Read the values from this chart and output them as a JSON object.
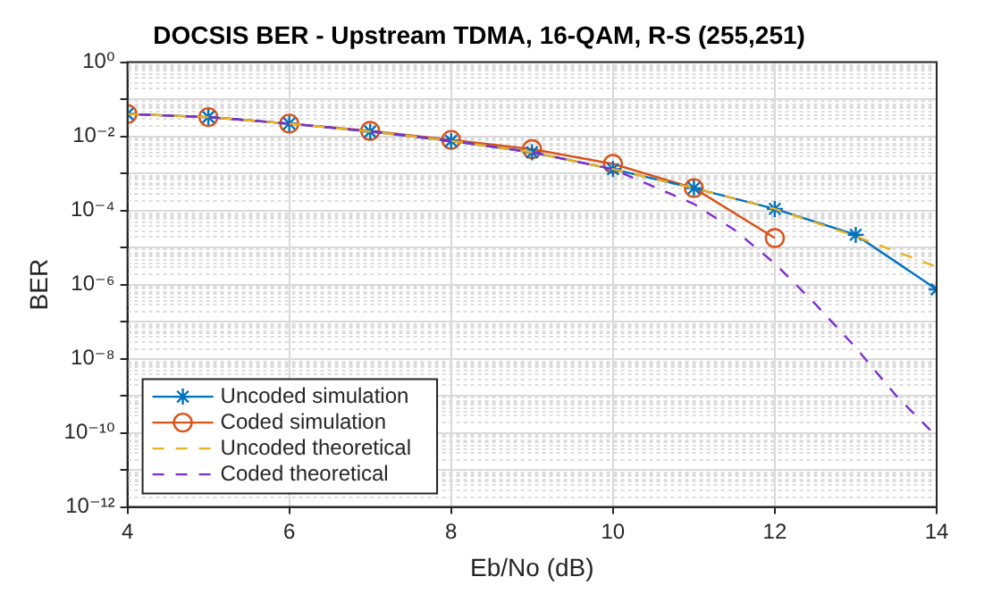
{
  "chart_data": {
    "type": "line",
    "title": "DOCSIS BER - Upstream TDMA, 16-QAM, R-S (255,251)",
    "xlabel": "Eb/No (dB)",
    "ylabel": "BER",
    "log": "y",
    "grid": true,
    "legend": "bottom left",
    "xlim": [
      4,
      14
    ],
    "xticks": [
      4,
      6,
      8,
      10,
      12,
      14
    ],
    "ylim": [
      1e-12,
      1
    ],
    "yticks": [
      {
        "value": 1,
        "label": "10⁰"
      },
      {
        "value": 0.1,
        "label": null
      },
      {
        "value": 0.01,
        "label": "10⁻²"
      },
      {
        "value": 0.001,
        "label": null
      },
      {
        "value": 0.0001,
        "label": "10⁻⁴"
      },
      {
        "value": 1e-05,
        "label": null
      },
      {
        "value": 1e-06,
        "label": "10⁻⁶"
      },
      {
        "value": 1e-07,
        "label": null
      },
      {
        "value": 1e-08,
        "label": "10⁻⁸"
      },
      {
        "value": 1e-09,
        "label": null
      },
      {
        "value": 1e-10,
        "label": "10⁻¹⁰"
      },
      {
        "value": 1e-11,
        "label": null
      },
      {
        "value": 1e-12,
        "label": "10⁻¹²"
      }
    ],
    "series": [
      {
        "name": "Uncoded simulation",
        "color": "#0072bd",
        "marker": "cross",
        "line_style": "solid",
        "x": [
          4,
          5,
          6,
          7,
          8,
          9,
          10,
          11,
          12,
          13,
          14
        ],
        "values": [
          0.04,
          0.033,
          0.022,
          0.0135,
          0.0075,
          0.0037,
          0.0013,
          0.0004,
          0.00011,
          2.2e-05,
          7.4e-07
        ]
      },
      {
        "name": "Coded simulation",
        "color": "#d95319",
        "marker": "circle",
        "line_style": "solid",
        "x": [
          4,
          5,
          6,
          7,
          8,
          9,
          10,
          11,
          12
        ],
        "values": [
          0.04,
          0.033,
          0.022,
          0.014,
          0.008,
          0.0045,
          0.0018,
          0.0004,
          1.8e-05
        ]
      },
      {
        "name": "Uncoded theoretical",
        "color": "#edb120",
        "marker": "none",
        "line_style": "dashed",
        "x": [
          4,
          5,
          6,
          7,
          8,
          9,
          10,
          11,
          12,
          13,
          14
        ],
        "values": [
          0.04,
          0.033,
          0.022,
          0.0135,
          0.0075,
          0.0037,
          0.0013,
          0.0004,
          0.00011,
          2e-05,
          3e-06
        ]
      },
      {
        "name": "Coded theoretical",
        "color": "#7e2fd0",
        "marker": "none",
        "line_style": "dashed",
        "x": [
          4,
          5,
          6,
          7,
          8,
          9,
          10,
          11,
          11.5,
          12,
          12.5,
          13,
          13.5,
          14
        ],
        "values": [
          0.04,
          0.033,
          0.022,
          0.0135,
          0.0075,
          0.0037,
          0.0013,
          0.00015,
          3e-05,
          3.7e-06,
          3e-07,
          2e-08,
          1e-09,
          8e-11
        ]
      }
    ]
  }
}
